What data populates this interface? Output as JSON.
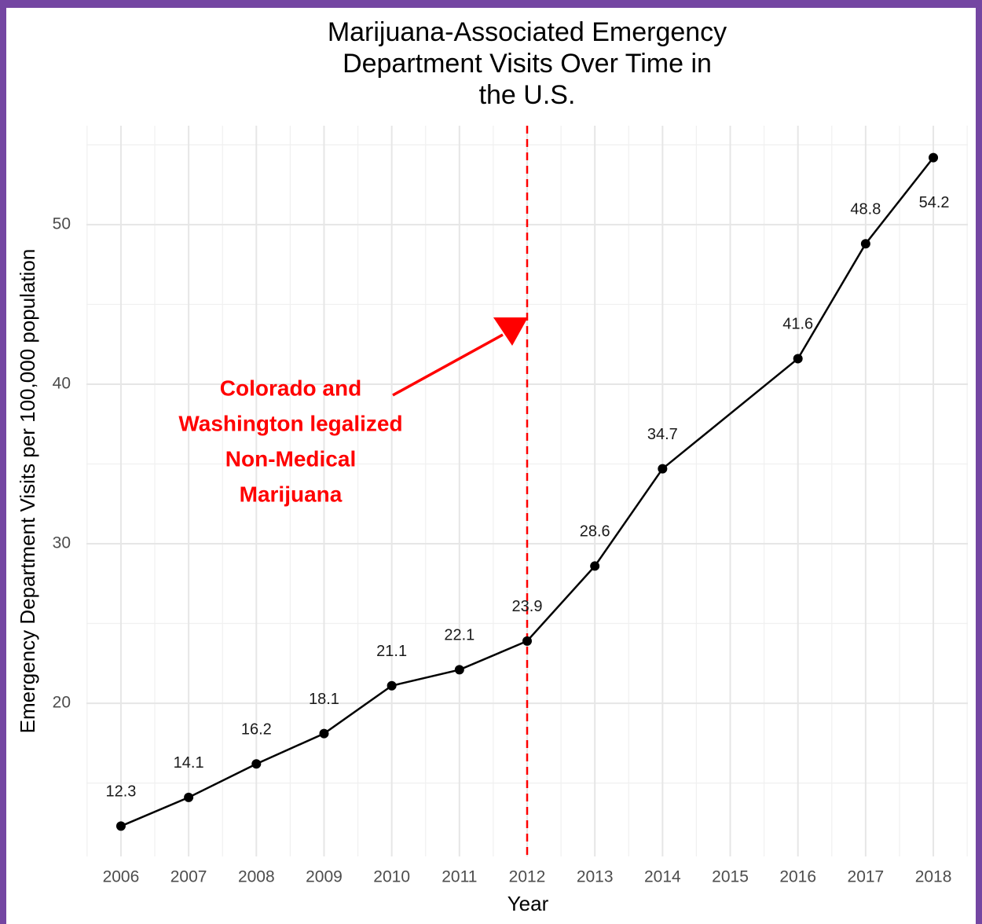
{
  "chart_data": {
    "type": "line",
    "title": [
      "Marijuana-Associated Emergency",
      "Department Visits Over Time in",
      "the U.S."
    ],
    "x_label": "Year",
    "y_label": "Emergency Department Visits per 100,000 population",
    "x": [
      2006,
      2007,
      2008,
      2009,
      2010,
      2011,
      2012,
      2013,
      2014,
      2016,
      2017,
      2018
    ],
    "series": [
      {
        "name": "Visits",
        "color": "#000000",
        "values": [
          12.3,
          14.1,
          16.2,
          18.1,
          21.1,
          22.1,
          23.9,
          28.6,
          34.7,
          41.6,
          48.8,
          54.2
        ]
      }
    ],
    "xlim": [
      2005.49,
      2018.51
    ],
    "ylim": [
      10.4,
      56.2
    ],
    "xticks": [
      2006,
      2007,
      2008,
      2009,
      2010,
      2011,
      2012,
      2013,
      2014,
      2015,
      2016,
      2017,
      2018
    ],
    "yticks": [
      20,
      30,
      40,
      50
    ],
    "grid": true,
    "vline": {
      "x": 2012,
      "color": "#ff0000"
    },
    "annotation": {
      "text": [
        "Colorado and",
        "Washington legalized",
        "Non-Medical",
        "Marijuana"
      ],
      "color": "#ff0000"
    }
  }
}
